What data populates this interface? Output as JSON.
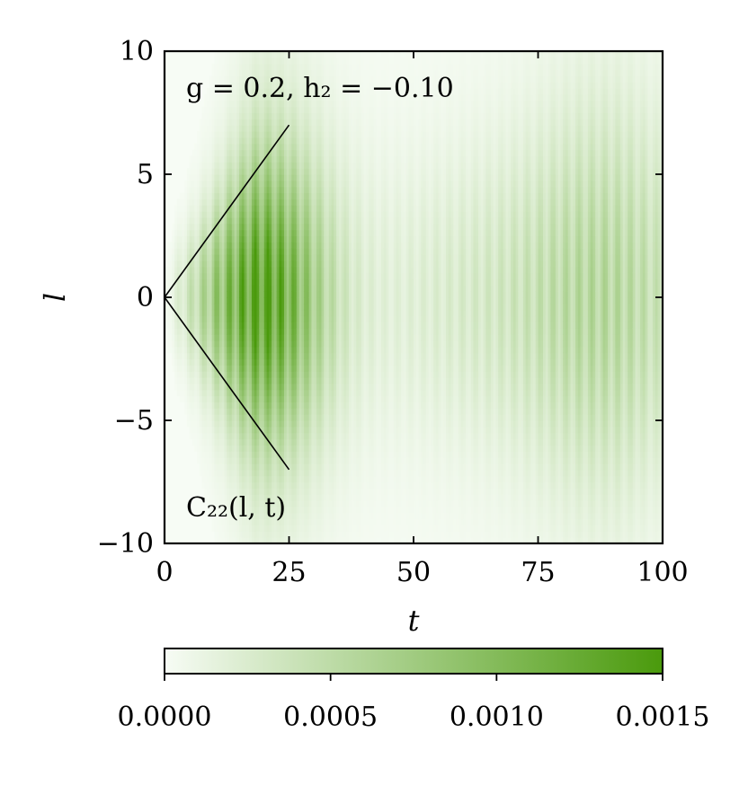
{
  "chart_data": {
    "type": "heatmap",
    "title": "",
    "xlabel": "t",
    "ylabel": "l",
    "xlim": [
      0,
      100
    ],
    "ylim": [
      -10,
      10
    ],
    "xticks": [
      0,
      25,
      50,
      75,
      100
    ],
    "xtick_labels": [
      "0",
      "25",
      "50",
      "75",
      "100"
    ],
    "yticks": [
      10,
      5,
      0,
      -5,
      -10
    ],
    "ytick_labels": [
      "10",
      "5",
      "0",
      "−5",
      "−10"
    ],
    "annotation_top": "g = 0.2, h₂ = −0.10",
    "annotation_bottom": "C₂₂(l, t)",
    "lightcone_lines": [
      {
        "x": [
          0,
          25
        ],
        "y": [
          0,
          7
        ]
      },
      {
        "x": [
          0,
          25
        ],
        "y": [
          0,
          -7
        ]
      }
    ],
    "colorbar": {
      "min": 0.0,
      "max": 0.0015,
      "ticks": [
        0.0,
        0.0005,
        0.001,
        0.0015
      ],
      "tick_labels": [
        "0.0000",
        "0.0005",
        "0.0010",
        "0.0015"
      ],
      "color_low": "#f7fcf5",
      "color_high": "#4a9a0c",
      "orientation": "horizontal"
    }
  }
}
